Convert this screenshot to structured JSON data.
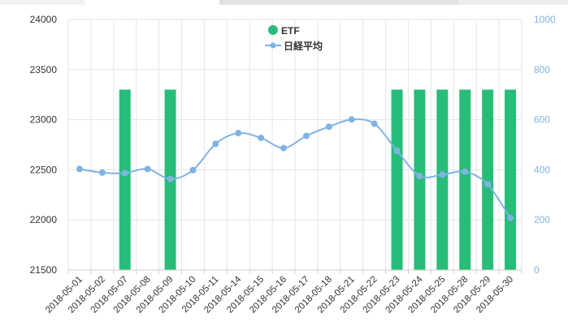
{
  "colors": {
    "bar": "#27bd78",
    "line": "#7fb3e3",
    "grid": "#e6e6e6",
    "axis_text_left": "#333333",
    "axis_text_right": "#7fb3e3",
    "legend_text": "#333333"
  },
  "chart_data": {
    "type": "bar",
    "categories": [
      "2018-05-01",
      "2018-05-02",
      "2018-05-07",
      "2018-05-08",
      "2018-05-09",
      "2018-05-10",
      "2018-05-11",
      "2018-05-14",
      "2018-05-15",
      "2018-05-16",
      "2018-05-17",
      "2018-05-18",
      "2018-05-21",
      "2018-05-22",
      "2018-05-23",
      "2018-05-24",
      "2018-05-25",
      "2018-05-28",
      "2018-05-29",
      "2018-05-30"
    ],
    "series": [
      {
        "name": "ETF",
        "type": "bar",
        "axis": "right",
        "values": [
          0,
          0,
          720,
          0,
          720,
          0,
          0,
          0,
          0,
          0,
          0,
          0,
          0,
          0,
          720,
          720,
          720,
          720,
          720,
          720
        ]
      },
      {
        "name": "日経平均",
        "type": "line",
        "axis": "left",
        "smooth": true,
        "values": [
          22508,
          22472,
          22467,
          22508,
          22408,
          22497,
          22759,
          22866,
          22818,
          22717,
          22838,
          22930,
          23002,
          22960,
          22690,
          22438,
          22451,
          22481,
          22355,
          22018
        ]
      }
    ],
    "y_left": {
      "min": 21500,
      "max": 24000,
      "ticks": [
        "21500",
        "22000",
        "22500",
        "23000",
        "23500",
        "24000"
      ]
    },
    "y_right": {
      "min": 0,
      "max": 1000,
      "ticks": [
        "0",
        "200",
        "400",
        "600",
        "800",
        "1000"
      ]
    },
    "legend": {
      "position": "top-center"
    },
    "grid": true
  }
}
